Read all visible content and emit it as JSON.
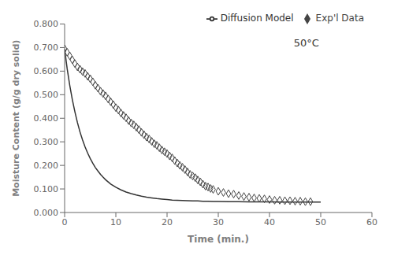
{
  "chart_data": {
    "type": "scatter_line",
    "annotation": "50°C",
    "xlabel": "Time (min.)",
    "ylabel": "Moisture Content (g/g dry solid)",
    "xlim": [
      0,
      60
    ],
    "ylim": [
      0,
      0.8
    ],
    "xticks": [
      0,
      10,
      20,
      30,
      40,
      50,
      60
    ],
    "yticks": [
      {
        "value": 0,
        "label": "0.000"
      },
      {
        "value": 0.1,
        "label": "0.100"
      },
      {
        "value": 0.2,
        "label": "0.200"
      },
      {
        "value": 0.3,
        "label": "0.300"
      },
      {
        "value": 0.4,
        "label": "0.400"
      },
      {
        "value": 0.5,
        "label": "0.500"
      },
      {
        "value": 0.6,
        "label": "0.600"
      },
      {
        "value": 0.7,
        "label": "0.700"
      },
      {
        "value": 0.8,
        "label": "0.800"
      }
    ],
    "grid": false,
    "legend": "upper right",
    "series": [
      {
        "name": "Exp'l Data",
        "type": "scatter",
        "marker": "diamond",
        "color": "#444444",
        "x": [
          0.0,
          0.5,
          1.0,
          1.5,
          2.0,
          2.5,
          3.0,
          3.5,
          4.0,
          4.5,
          5.0,
          5.5,
          6.0,
          6.5,
          7.0,
          7.5,
          8.0,
          8.5,
          9.0,
          9.5,
          10.0,
          10.5,
          11.0,
          11.5,
          12.0,
          12.5,
          13.0,
          13.5,
          14.0,
          14.5,
          15.0,
          15.5,
          16.0,
          16.5,
          17.0,
          17.5,
          18.0,
          18.5,
          19.0,
          19.5,
          20.0,
          20.5,
          21.0,
          21.5,
          22.0,
          22.5,
          23.0,
          23.5,
          24.0,
          24.5,
          25.0,
          25.5,
          26.0,
          26.5,
          27.0,
          27.5,
          28.0,
          28.5,
          29.0,
          30.0,
          31.0,
          32.0,
          33.0,
          34.0,
          35.0,
          36.0,
          37.0,
          38.0,
          39.0,
          40.0,
          41.0,
          42.0,
          43.0,
          44.0,
          45.0,
          46.0,
          47.0,
          48.0
        ],
        "values": [
          0.695,
          0.68,
          0.665,
          0.648,
          0.632,
          0.618,
          0.608,
          0.598,
          0.59,
          0.578,
          0.568,
          0.555,
          0.54,
          0.528,
          0.515,
          0.505,
          0.495,
          0.482,
          0.47,
          0.458,
          0.445,
          0.435,
          0.422,
          0.412,
          0.402,
          0.39,
          0.38,
          0.372,
          0.362,
          0.352,
          0.34,
          0.33,
          0.32,
          0.312,
          0.302,
          0.292,
          0.285,
          0.275,
          0.265,
          0.258,
          0.25,
          0.24,
          0.232,
          0.22,
          0.21,
          0.2,
          0.192,
          0.182,
          0.172,
          0.162,
          0.155,
          0.148,
          0.138,
          0.13,
          0.12,
          0.112,
          0.108,
          0.102,
          0.098,
          0.09,
          0.085,
          0.08,
          0.078,
          0.072,
          0.068,
          0.065,
          0.062,
          0.06,
          0.058,
          0.055,
          0.052,
          0.052,
          0.05,
          0.05,
          0.048,
          0.048,
          0.046,
          0.046
        ]
      },
      {
        "name": "Diffusion Model",
        "type": "line",
        "line_style": "solid",
        "color": "#333333",
        "x": [
          0.0,
          0.2,
          0.5,
          1.0,
          1.5,
          2.0,
          2.5,
          3.0,
          3.5,
          4.0,
          4.5,
          5.0,
          5.5,
          6.0,
          6.5,
          7.0,
          7.5,
          8.0,
          8.5,
          9.0,
          9.5,
          10.0,
          11.0,
          12.0,
          13.0,
          14.0,
          15.0,
          16.0,
          17.0,
          18.0,
          19.0,
          20.0,
          21.0,
          22.0,
          23.0,
          24.0,
          25.0,
          26.0,
          27.0,
          28.0,
          29.0,
          30.0,
          32.0,
          34.0,
          36.0,
          38.0,
          40.0,
          42.0,
          44.0,
          46.0,
          48.0,
          50.0
        ],
        "values": [
          0.695,
          0.66,
          0.61,
          0.54,
          0.48,
          0.428,
          0.382,
          0.342,
          0.308,
          0.278,
          0.252,
          0.229,
          0.209,
          0.191,
          0.176,
          0.162,
          0.15,
          0.139,
          0.13,
          0.121,
          0.114,
          0.107,
          0.096,
          0.087,
          0.08,
          0.074,
          0.069,
          0.065,
          0.062,
          0.059,
          0.057,
          0.055,
          0.053,
          0.052,
          0.051,
          0.05,
          0.049,
          0.049,
          0.048,
          0.048,
          0.047,
          0.047,
          0.046,
          0.046,
          0.045,
          0.045,
          0.045,
          0.044,
          0.044,
          0.044,
          0.044,
          0.044
        ]
      }
    ]
  }
}
